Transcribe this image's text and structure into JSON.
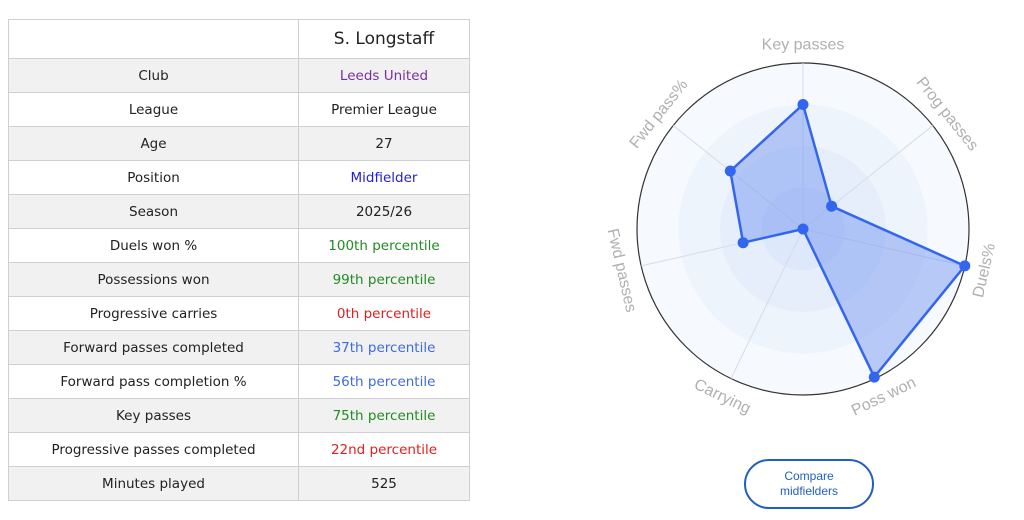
{
  "player": {
    "name": "S. Longstaff"
  },
  "rows": [
    {
      "label": "Club",
      "value": "Leeds United",
      "color": "#7a2fa0"
    },
    {
      "label": "League",
      "value": "Premier League",
      "color": "#222222"
    },
    {
      "label": "Age",
      "value": "27",
      "color": "#222222"
    },
    {
      "label": "Position",
      "value": "Midfielder",
      "color": "#2222cc"
    },
    {
      "label": "Season",
      "value": "2025/26",
      "color": "#222222"
    },
    {
      "label": "Duels won %",
      "value": "100th percentile",
      "color": "#228b22"
    },
    {
      "label": "Possessions won",
      "value": "99th percentile",
      "color": "#228b22"
    },
    {
      "label": "Progressive carries",
      "value": "0th percentile",
      "color": "#e02020"
    },
    {
      "label": "Forward passes completed",
      "value": "37th percentile",
      "color": "#4169e1"
    },
    {
      "label": "Forward pass completion %",
      "value": "56th percentile",
      "color": "#4169e1"
    },
    {
      "label": "Key passes",
      "value": "75th percentile",
      "color": "#228b22"
    },
    {
      "label": "Progressive passes completed",
      "value": "22nd percentile",
      "color": "#e02020"
    },
    {
      "label": "Minutes played",
      "value": "525",
      "color": "#222222"
    }
  ],
  "radar": {
    "axes": [
      {
        "label": "Key passes",
        "value": 75
      },
      {
        "label": "Prog passes",
        "value": 22
      },
      {
        "label": "Duels%",
        "value": 100
      },
      {
        "label": "Poss won",
        "value": 99
      },
      {
        "label": "Carrying",
        "value": 0
      },
      {
        "label": "Fwd passes",
        "value": 37
      },
      {
        "label": "Fwd pass%",
        "value": 56
      }
    ],
    "max": 100,
    "fill_color": "#6a8ff0",
    "line_color": "#3366ee",
    "label_color": "#b0b0b0"
  },
  "compare_button": {
    "line1": "Compare",
    "line2": "midfielders"
  }
}
